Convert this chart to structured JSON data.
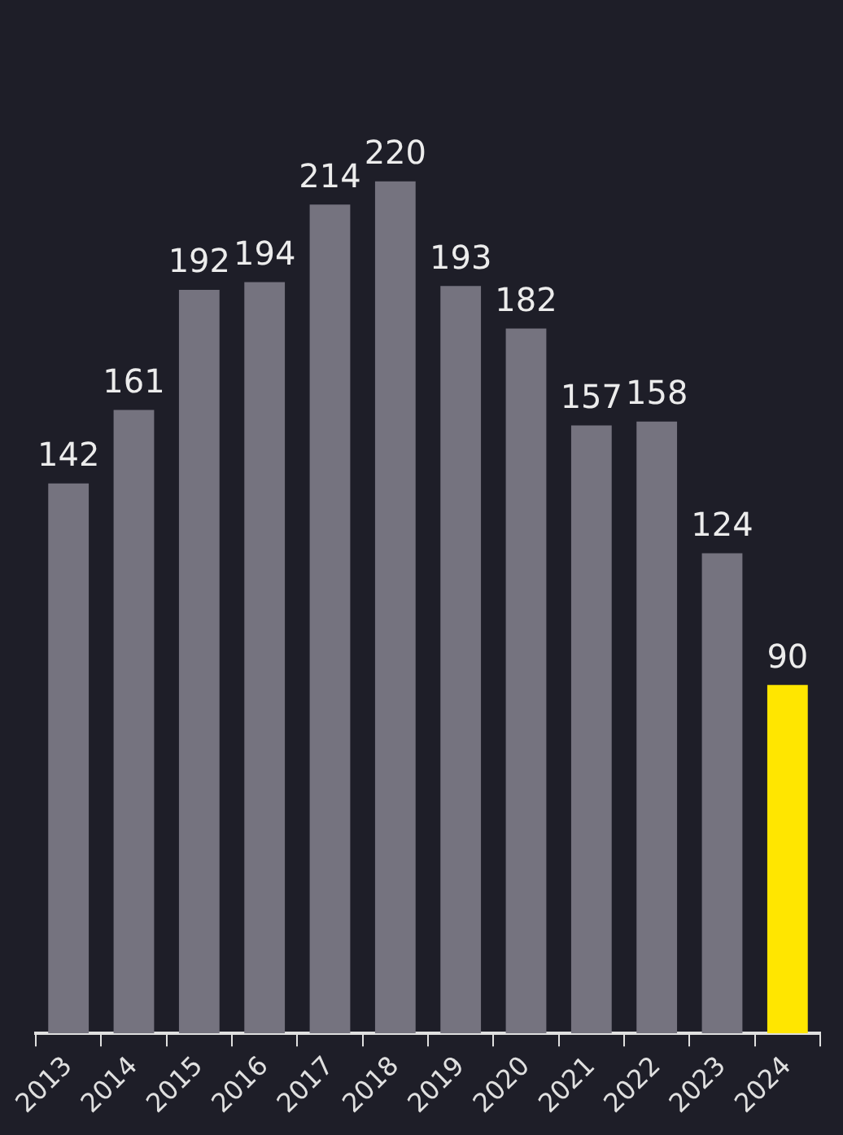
{
  "chart_data": {
    "type": "bar",
    "categories": [
      "2013",
      "2014",
      "2015",
      "2016",
      "2017",
      "2018",
      "2019",
      "2020",
      "2021",
      "2022",
      "2023",
      "2024"
    ],
    "values": [
      142,
      161,
      192,
      194,
      214,
      220,
      193,
      182,
      157,
      158,
      124,
      90
    ],
    "colors": [
      "#75737f",
      "#75737f",
      "#75737f",
      "#75737f",
      "#75737f",
      "#75737f",
      "#75737f",
      "#75737f",
      "#75737f",
      "#75737f",
      "#75737f",
      "#ffe600"
    ],
    "data_labels": true,
    "grid": false,
    "legend": false,
    "tick_labels": "x"
  }
}
